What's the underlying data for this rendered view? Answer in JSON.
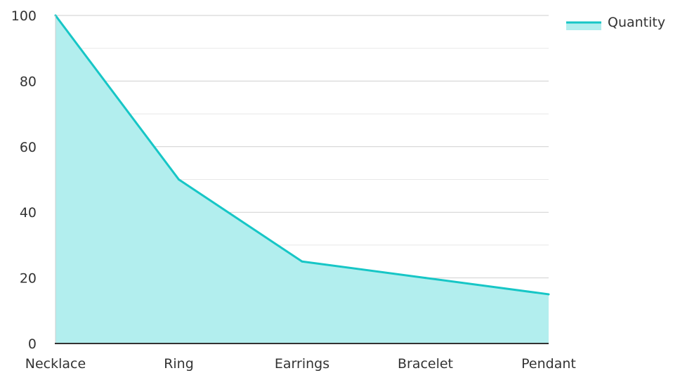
{
  "chart_data": {
    "type": "area",
    "categories": [
      "Necklace",
      "Ring",
      "Earrings",
      "Bracelet",
      "Pendant"
    ],
    "series": [
      {
        "name": "Quantity",
        "values": [
          100,
          50,
          25,
          20,
          15
        ],
        "line_color": "#17c6c6",
        "fill_color": "#b2eeee"
      }
    ],
    "ylim": [
      0,
      100
    ],
    "yticks": [
      0,
      20,
      40,
      60,
      80,
      100
    ],
    "grid": true,
    "legend": "top-right"
  }
}
